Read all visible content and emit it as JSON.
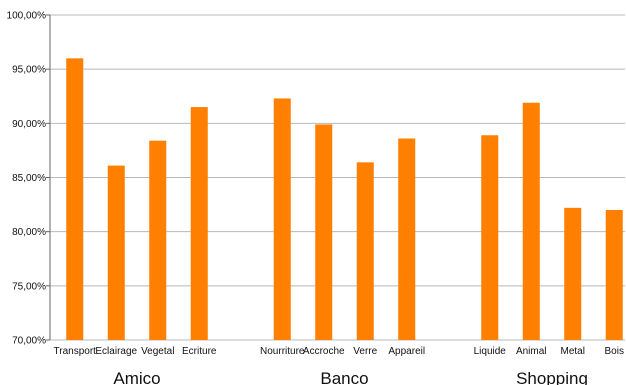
{
  "chart_data": {
    "type": "bar",
    "title": "",
    "xlabel": "",
    "ylabel": "",
    "ylim": [
      70,
      100
    ],
    "y_ticks": [
      "70,00%",
      "75,00%",
      "80,00%",
      "85,00%",
      "90,00%",
      "95,00%",
      "100,00%"
    ],
    "grid": true,
    "legend": "none",
    "bar_color": "#ff7f00",
    "grid_color": "#b8b8b8",
    "groups": [
      {
        "name": "Amico",
        "categories": [
          "Transport",
          "Eclairage",
          "Vegetal",
          "Ecriture"
        ],
        "values": [
          96.0,
          86.1,
          88.4,
          91.5
        ]
      },
      {
        "name": "Banco",
        "categories": [
          "Nourriture",
          "Accroche",
          "Verre",
          "Appareil"
        ],
        "values": [
          92.3,
          89.9,
          86.4,
          88.6
        ]
      },
      {
        "name": "Shopping",
        "categories": [
          "Liquide",
          "Animal",
          "Metal",
          "Bois"
        ],
        "values": [
          88.9,
          91.9,
          82.2,
          82.0
        ]
      }
    ]
  }
}
